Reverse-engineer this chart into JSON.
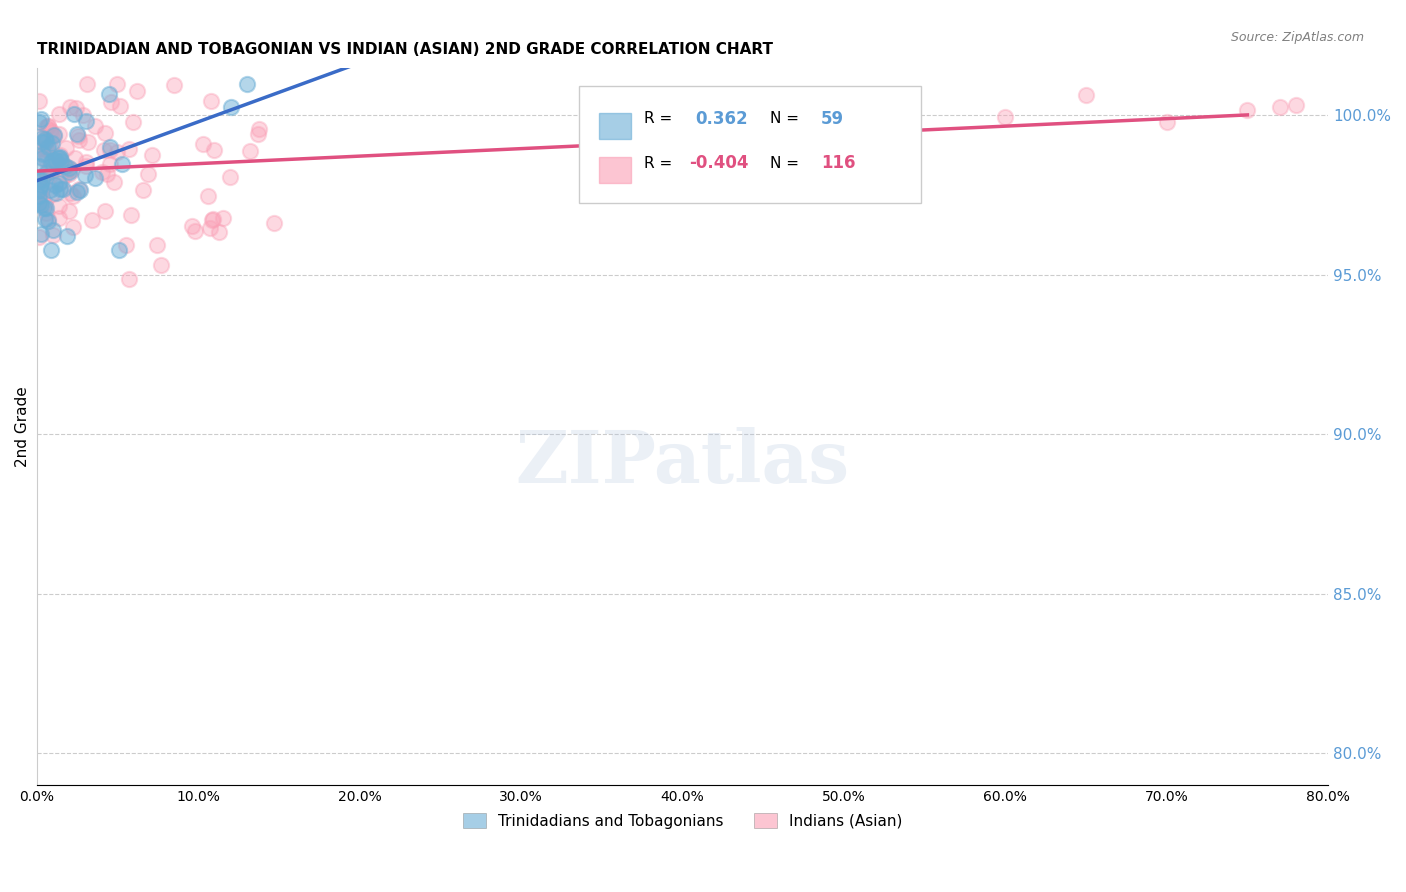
{
  "title": "TRINIDADIAN AND TOBAGONIAN VS INDIAN (ASIAN) 2ND GRADE CORRELATION CHART",
  "source": "Source: ZipAtlas.com",
  "ylabel": "2nd Grade",
  "x_lim": [
    0.0,
    80.0
  ],
  "y_lim": [
    79.0,
    101.5
  ],
  "blue_R": 0.362,
  "blue_N": 59,
  "pink_R": -0.404,
  "pink_N": 116,
  "background_color": "#ffffff",
  "blue_color": "#6baed6",
  "pink_color": "#fa9fb5",
  "blue_line_color": "#3a6bc7",
  "pink_line_color": "#e05080",
  "grid_color": "#cccccc",
  "right_axis_color": "#5b9bd5",
  "title_fontsize": 11,
  "watermark": "ZIPatlas"
}
